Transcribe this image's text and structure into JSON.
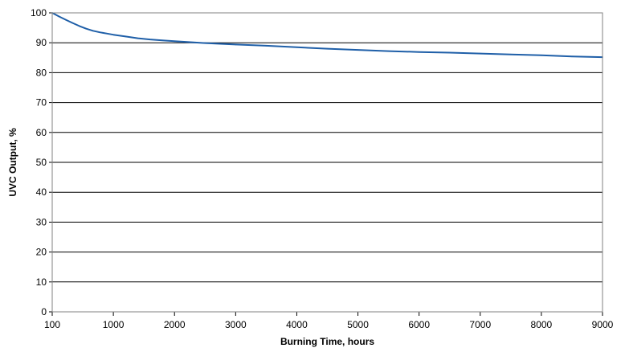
{
  "chart_data": {
    "type": "line",
    "title": "",
    "xlabel": "Burning Time, hours",
    "ylabel": "UVC Output, %",
    "xlim": [
      100,
      9000
    ],
    "ylim": [
      0,
      100
    ],
    "x_ticks": [
      100,
      1000,
      2000,
      3000,
      4000,
      5000,
      6000,
      7000,
      8000,
      9000
    ],
    "y_ticks": [
      0,
      10,
      20,
      30,
      40,
      50,
      60,
      70,
      80,
      90,
      100
    ],
    "grid": "horizontal",
    "legend": "none",
    "series": [
      {
        "color": "#1f5fa8",
        "x": [
          100,
          200,
          300,
          400,
          500,
          600,
          700,
          800,
          900,
          1000,
          1200,
          1400,
          1600,
          1800,
          2000,
          2500,
          3000,
          3500,
          4000,
          4500,
          5000,
          5500,
          6000,
          6500,
          7000,
          7500,
          8000,
          8500,
          9000
        ],
        "y": [
          100,
          98.8,
          97.7,
          96.6,
          95.6,
          94.7,
          94.0,
          93.5,
          93.1,
          92.7,
          92.1,
          91.5,
          91.1,
          90.8,
          90.5,
          89.9,
          89.4,
          89.0,
          88.5,
          88.0,
          87.6,
          87.2,
          86.9,
          86.7,
          86.4,
          86.1,
          85.8,
          85.4,
          85.2
        ]
      }
    ]
  }
}
